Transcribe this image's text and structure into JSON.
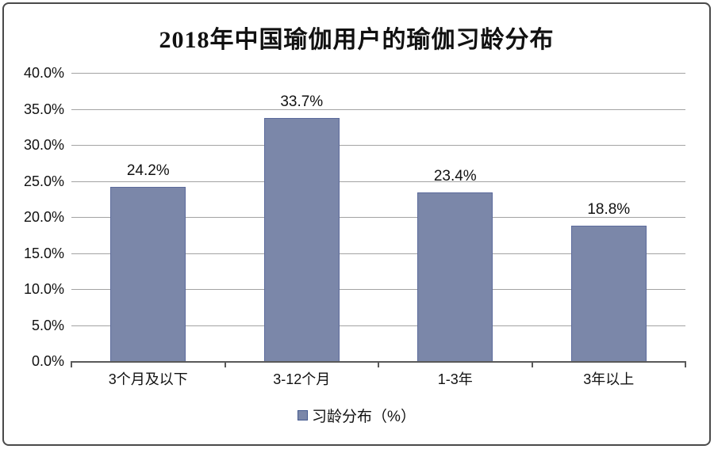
{
  "chart_data": {
    "type": "bar",
    "title": "2018年中国瑜伽用户的瑜伽习龄分布",
    "categories": [
      "3个月及以下",
      "3-12个月",
      "1-3年",
      "3年以上"
    ],
    "values": [
      24.2,
      33.7,
      23.4,
      18.8
    ],
    "value_labels": [
      "24.2%",
      "33.7%",
      "23.4%",
      "18.8%"
    ],
    "xlabel": "",
    "ylabel": "",
    "ylim": [
      0,
      40
    ],
    "ytick_step": 5,
    "ytick_labels": [
      "0.0%",
      "5.0%",
      "10.0%",
      "15.0%",
      "20.0%",
      "25.0%",
      "30.0%",
      "35.0%",
      "40.0%"
    ],
    "grid": true,
    "legend": {
      "position": "bottom",
      "entries": [
        {
          "label": "习龄分布（%）",
          "color": "#7b87a9"
        }
      ]
    },
    "colors": {
      "bar_fill": "#7b87a9",
      "bar_border": "#5c6b9c",
      "gridline": "#a3a3a3",
      "axis": "#595959",
      "swatch_border": "#44598e",
      "title_text": "#111111",
      "frame_border": "#4a4a4a"
    }
  }
}
